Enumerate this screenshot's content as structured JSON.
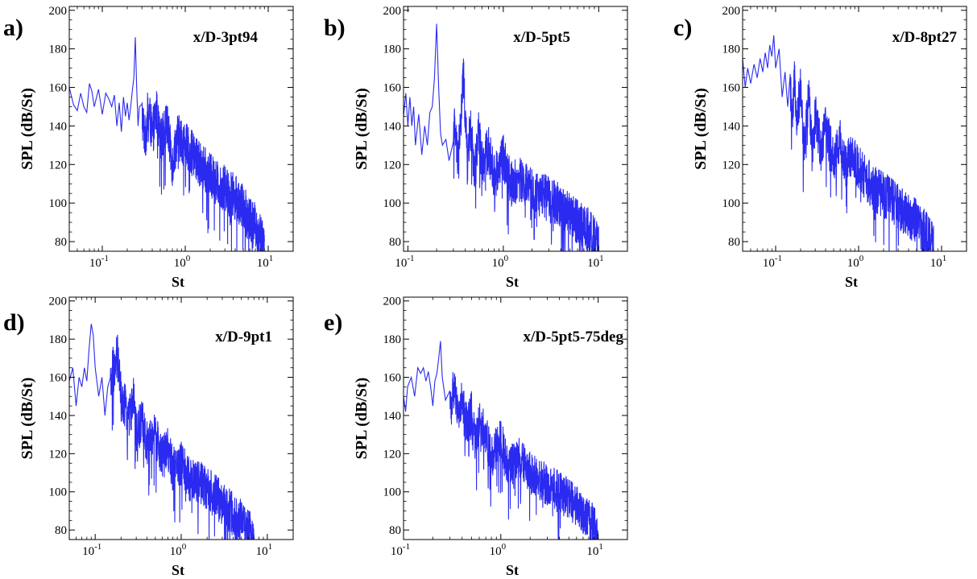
{
  "figure": {
    "background": "#ffffff",
    "line_color": "#2a2af0"
  },
  "chart_data": [
    {
      "type": "line",
      "panel_label": "a)",
      "annotation": "x/D-3pt94",
      "xlabel": "St",
      "ylabel": "SPL (dB/St)",
      "xscale": "log",
      "xlim": [
        0.04,
        20
      ],
      "ylim": [
        75,
        202
      ],
      "yticks": [
        80,
        100,
        120,
        140,
        160,
        180,
        200
      ],
      "xticks": [
        {
          "base": "10",
          "exp": "-1",
          "value": 0.1
        },
        {
          "base": "10",
          "exp": "0",
          "value": 1
        },
        {
          "base": "10",
          "exp": "1",
          "value": 10
        }
      ],
      "series": [
        {
          "name": "SPL",
          "x": [
            0.04,
            0.045,
            0.05,
            0.055,
            0.06,
            0.065,
            0.07,
            0.075,
            0.08,
            0.09,
            0.1,
            0.11,
            0.12,
            0.13,
            0.14,
            0.15,
            0.16,
            0.17,
            0.18,
            0.19,
            0.2,
            0.21,
            0.22,
            0.23,
            0.24,
            0.25,
            0.26,
            0.27,
            0.28,
            0.3,
            0.33,
            0.36,
            0.4,
            0.45,
            0.5,
            0.6,
            0.7,
            0.8,
            1.0,
            1.2,
            1.5,
            2.0,
            2.5,
            3.0,
            4.0,
            5.0,
            6.0,
            7.0,
            8.0,
            9.0
          ],
          "y": [
            160,
            151,
            148,
            157,
            150,
            147,
            162,
            158,
            150,
            159,
            146,
            157,
            154,
            150,
            156,
            140,
            152,
            137,
            155,
            145,
            152,
            143,
            150,
            158,
            165,
            186,
            160,
            140,
            150,
            146,
            133,
            150,
            135,
            148,
            131,
            142,
            120,
            135,
            130,
            126,
            120,
            114,
            110,
            108,
            103,
            98,
            93,
            88,
            83,
            77
          ]
        }
      ],
      "band": {
        "from": 0.3,
        "to": 9.0,
        "amplitude": 12
      }
    },
    {
      "type": "line",
      "panel_label": "b)",
      "annotation": "x/D-5pt5",
      "xlabel": "St",
      "ylabel": "SPL (dB/St)",
      "xscale": "log",
      "xlim": [
        0.09,
        20
      ],
      "ylim": [
        75,
        202
      ],
      "yticks": [
        80,
        100,
        120,
        140,
        160,
        180,
        200
      ],
      "xticks": [
        {
          "base": "10",
          "exp": "-1",
          "value": 0.1
        },
        {
          "base": "10",
          "exp": "0",
          "value": 1
        },
        {
          "base": "10",
          "exp": "1",
          "value": 10
        }
      ],
      "series": [
        {
          "name": "SPL",
          "x": [
            0.09,
            0.095,
            0.1,
            0.105,
            0.11,
            0.115,
            0.12,
            0.13,
            0.14,
            0.15,
            0.16,
            0.17,
            0.18,
            0.19,
            0.2,
            0.21,
            0.22,
            0.23,
            0.25,
            0.27,
            0.3,
            0.33,
            0.36,
            0.38,
            0.4,
            0.42,
            0.45,
            0.5,
            0.55,
            0.6,
            0.7,
            0.8,
            1.0,
            1.2,
            1.5,
            2.0,
            2.5,
            3.0,
            4.0,
            5.0,
            6.0,
            7.0,
            8.0,
            9.0,
            10.0
          ],
          "y": [
            145,
            157,
            140,
            155,
            140,
            150,
            130,
            146,
            125,
            140,
            130,
            147,
            150,
            165,
            193,
            160,
            136,
            130,
            133,
            122,
            145,
            125,
            142,
            167,
            145,
            120,
            140,
            115,
            138,
            120,
            128,
            114,
            124,
            110,
            112,
            106,
            104,
            102,
            98,
            94,
            90,
            88,
            85,
            82,
            77
          ]
        }
      ],
      "band": {
        "from": 0.3,
        "to": 10.0,
        "amplitude": 12
      }
    },
    {
      "type": "line",
      "panel_label": "c)",
      "annotation": "x/D-8pt27",
      "xlabel": "St",
      "ylabel": "SPL (dB/St)",
      "xscale": "log",
      "xlim": [
        0.04,
        20
      ],
      "ylim": [
        75,
        202
      ],
      "yticks": [
        80,
        100,
        120,
        140,
        160,
        180,
        200
      ],
      "xticks": [
        {
          "base": "10",
          "exp": "-1",
          "value": 0.1
        },
        {
          "base": "10",
          "exp": "0",
          "value": 1
        },
        {
          "base": "10",
          "exp": "1",
          "value": 10
        }
      ],
      "series": [
        {
          "name": "SPL",
          "x": [
            0.04,
            0.043,
            0.046,
            0.05,
            0.055,
            0.06,
            0.065,
            0.07,
            0.075,
            0.08,
            0.085,
            0.09,
            0.095,
            0.1,
            0.11,
            0.12,
            0.13,
            0.14,
            0.15,
            0.16,
            0.17,
            0.18,
            0.2,
            0.22,
            0.25,
            0.28,
            0.3,
            0.35,
            0.4,
            0.5,
            0.6,
            0.7,
            0.8,
            1.0,
            1.2,
            1.5,
            2.0,
            2.5,
            3.0,
            4.0,
            5.0,
            6.0,
            7.0,
            8.0
          ],
          "y": [
            175,
            160,
            170,
            162,
            172,
            165,
            175,
            168,
            178,
            170,
            182,
            176,
            187,
            170,
            180,
            155,
            168,
            150,
            160,
            140,
            168,
            145,
            160,
            128,
            155,
            130,
            148,
            128,
            140,
            122,
            132,
            118,
            125,
            118,
            114,
            108,
            104,
            102,
            98,
            94,
            90,
            86,
            82,
            78
          ]
        }
      ],
      "band": {
        "from": 0.15,
        "to": 8.0,
        "amplitude": 12
      }
    },
    {
      "type": "line",
      "panel_label": "d)",
      "annotation": "x/D-9pt1",
      "xlabel": "St",
      "ylabel": "SPL (dB/St)",
      "xscale": "log",
      "xlim": [
        0.05,
        20
      ],
      "ylim": [
        75,
        202
      ],
      "yticks": [
        80,
        100,
        120,
        140,
        160,
        180,
        200
      ],
      "xticks": [
        {
          "base": "10",
          "exp": "-1",
          "value": 0.1
        },
        {
          "base": "10",
          "exp": "0",
          "value": 1
        },
        {
          "base": "10",
          "exp": "1",
          "value": 10
        }
      ],
      "series": [
        {
          "name": "SPL",
          "x": [
            0.05,
            0.055,
            0.06,
            0.065,
            0.07,
            0.075,
            0.08,
            0.085,
            0.09,
            0.095,
            0.1,
            0.11,
            0.12,
            0.13,
            0.14,
            0.15,
            0.16,
            0.17,
            0.18,
            0.2,
            0.22,
            0.25,
            0.28,
            0.3,
            0.35,
            0.4,
            0.5,
            0.6,
            0.7,
            0.8,
            1.0,
            1.2,
            1.5,
            2.0,
            2.5,
            3.0,
            4.0,
            5.0,
            6.0,
            7.0
          ],
          "y": [
            158,
            165,
            145,
            160,
            155,
            165,
            158,
            175,
            188,
            182,
            165,
            150,
            160,
            140,
            155,
            152,
            165,
            160,
            173,
            150,
            145,
            140,
            148,
            130,
            138,
            125,
            130,
            118,
            122,
            112,
            115,
            108,
            105,
            102,
            98,
            94,
            88,
            84,
            80,
            76
          ]
        }
      ],
      "band": {
        "from": 0.15,
        "to": 7.0,
        "amplitude": 12
      }
    },
    {
      "type": "line",
      "panel_label": "e)",
      "annotation": "x/D-5pt5-75deg",
      "xlabel": "St",
      "ylabel": "SPL (dB/St)",
      "xscale": "log",
      "xlim": [
        0.1,
        20
      ],
      "ylim": [
        75,
        202
      ],
      "yticks": [
        80,
        100,
        120,
        140,
        160,
        180,
        200
      ],
      "xticks": [
        {
          "base": "10",
          "exp": "-1",
          "value": 0.1
        },
        {
          "base": "10",
          "exp": "0",
          "value": 1
        },
        {
          "base": "10",
          "exp": "1",
          "value": 10
        }
      ],
      "series": [
        {
          "name": "SPL",
          "x": [
            0.1,
            0.105,
            0.11,
            0.12,
            0.13,
            0.14,
            0.15,
            0.16,
            0.17,
            0.18,
            0.19,
            0.2,
            0.21,
            0.22,
            0.23,
            0.24,
            0.25,
            0.27,
            0.3,
            0.33,
            0.36,
            0.4,
            0.45,
            0.5,
            0.55,
            0.6,
            0.7,
            0.8,
            1.0,
            1.2,
            1.5,
            2.0,
            2.5,
            3.0,
            4.0,
            5.0,
            6.0,
            7.0,
            8.0,
            9.0,
            10.0
          ],
          "y": [
            150,
            142,
            155,
            160,
            150,
            165,
            162,
            165,
            158,
            163,
            155,
            145,
            158,
            162,
            170,
            179,
            160,
            148,
            145,
            155,
            140,
            148,
            135,
            142,
            125,
            138,
            130,
            118,
            128,
            112,
            118,
            110,
            106,
            104,
            100,
            96,
            92,
            89,
            86,
            82,
            78
          ]
        }
      ],
      "band": {
        "from": 0.3,
        "to": 10.0,
        "amplitude": 11
      }
    }
  ]
}
